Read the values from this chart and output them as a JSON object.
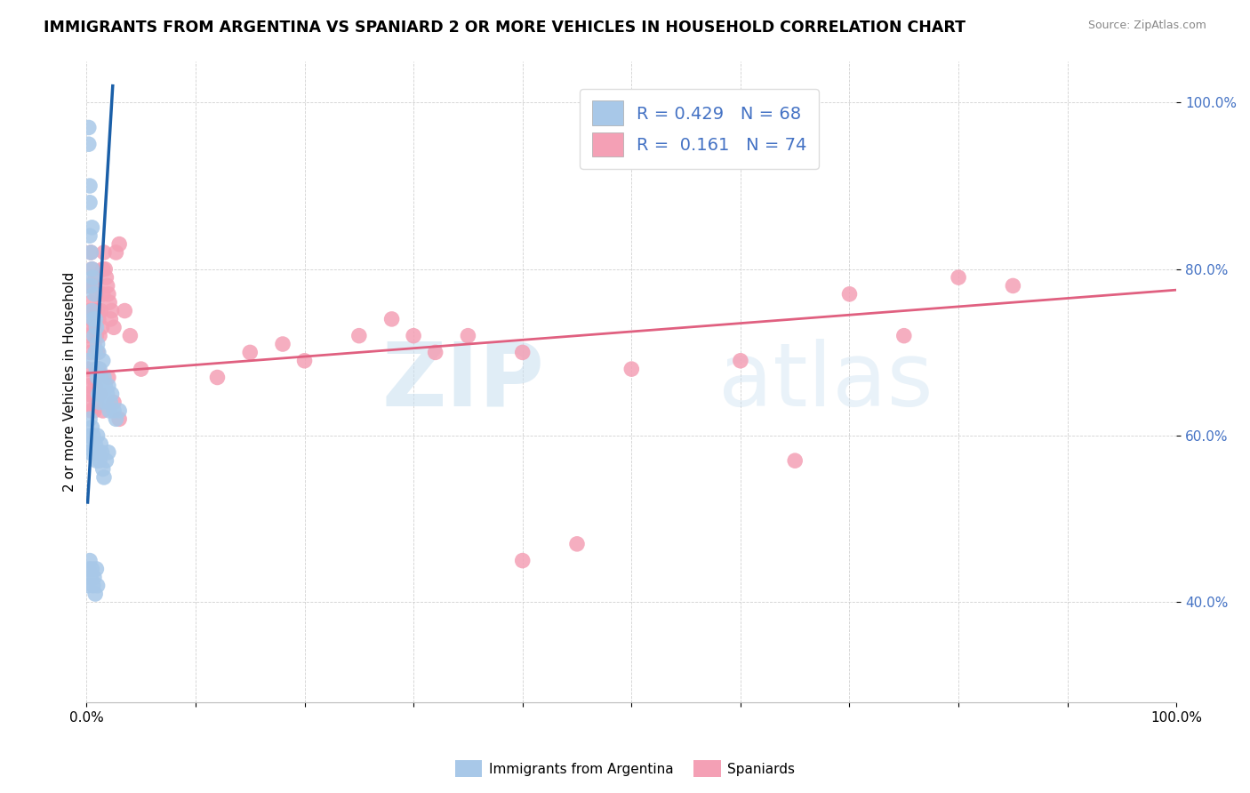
{
  "title": "IMMIGRANTS FROM ARGENTINA VS SPANIARD 2 OR MORE VEHICLES IN HOUSEHOLD CORRELATION CHART",
  "source": "Source: ZipAtlas.com",
  "ylabel": "2 or more Vehicles in Household",
  "legend_r1": "R = 0.429",
  "legend_n1": "N = 68",
  "legend_r2": "R =  0.161",
  "legend_n2": "N = 74",
  "blue_color": "#a8c8e8",
  "pink_color": "#f4a0b5",
  "blue_line_color": "#1a5fa8",
  "pink_line_color": "#e06080",
  "yticks_labels": [
    "40.0%",
    "60.0%",
    "80.0%",
    "100.0%"
  ],
  "ytick_vals": [
    0.4,
    0.6,
    0.8,
    1.0
  ],
  "watermark_zip": "ZIP",
  "watermark_atlas": "atlas",
  "xmin": 0.0,
  "xmax": 1.0,
  "ymin": 0.28,
  "ymax": 1.05,
  "arg_x": [
    0.001,
    0.002,
    0.002,
    0.003,
    0.003,
    0.003,
    0.004,
    0.004,
    0.005,
    0.005,
    0.005,
    0.006,
    0.006,
    0.007,
    0.007,
    0.008,
    0.008,
    0.009,
    0.009,
    0.01,
    0.01,
    0.011,
    0.011,
    0.012,
    0.012,
    0.013,
    0.014,
    0.015,
    0.015,
    0.016,
    0.017,
    0.018,
    0.019,
    0.02,
    0.021,
    0.022,
    0.023,
    0.025,
    0.027,
    0.03,
    0.001,
    0.002,
    0.003,
    0.004,
    0.005,
    0.006,
    0.007,
    0.008,
    0.009,
    0.01,
    0.011,
    0.012,
    0.013,
    0.014,
    0.015,
    0.016,
    0.018,
    0.02,
    0.001,
    0.002,
    0.003,
    0.004,
    0.005,
    0.006,
    0.007,
    0.008,
    0.009,
    0.01
  ],
  "arg_y": [
    0.69,
    0.95,
    0.97,
    0.9,
    0.88,
    0.84,
    0.82,
    0.78,
    0.85,
    0.8,
    0.75,
    0.79,
    0.74,
    0.77,
    0.72,
    0.74,
    0.7,
    0.73,
    0.68,
    0.71,
    0.67,
    0.7,
    0.65,
    0.68,
    0.64,
    0.67,
    0.66,
    0.69,
    0.65,
    0.67,
    0.66,
    0.64,
    0.65,
    0.66,
    0.63,
    0.64,
    0.65,
    0.63,
    0.62,
    0.63,
    0.58,
    0.6,
    0.62,
    0.59,
    0.61,
    0.6,
    0.58,
    0.59,
    0.57,
    0.6,
    0.58,
    0.57,
    0.59,
    0.58,
    0.56,
    0.55,
    0.57,
    0.58,
    0.42,
    0.44,
    0.45,
    0.43,
    0.44,
    0.42,
    0.43,
    0.41,
    0.44,
    0.42
  ],
  "spa_x": [
    0.001,
    0.002,
    0.002,
    0.003,
    0.003,
    0.004,
    0.004,
    0.005,
    0.005,
    0.006,
    0.006,
    0.007,
    0.007,
    0.008,
    0.008,
    0.009,
    0.009,
    0.01,
    0.01,
    0.011,
    0.011,
    0.012,
    0.013,
    0.014,
    0.015,
    0.015,
    0.016,
    0.017,
    0.018,
    0.019,
    0.02,
    0.021,
    0.022,
    0.023,
    0.025,
    0.027,
    0.03,
    0.035,
    0.04,
    0.05,
    0.001,
    0.002,
    0.003,
    0.004,
    0.005,
    0.006,
    0.007,
    0.008,
    0.009,
    0.01,
    0.012,
    0.015,
    0.02,
    0.025,
    0.03,
    0.3,
    0.4,
    0.5,
    0.6,
    0.65,
    0.7,
    0.75,
    0.8,
    0.85,
    0.12,
    0.15,
    0.18,
    0.2,
    0.25,
    0.28,
    0.32,
    0.35,
    0.4,
    0.45
  ],
  "spa_y": [
    0.68,
    0.72,
    0.78,
    0.75,
    0.7,
    0.82,
    0.76,
    0.74,
    0.8,
    0.73,
    0.78,
    0.75,
    0.71,
    0.79,
    0.73,
    0.77,
    0.72,
    0.75,
    0.7,
    0.74,
    0.68,
    0.72,
    0.75,
    0.73,
    0.8,
    0.77,
    0.82,
    0.8,
    0.79,
    0.78,
    0.77,
    0.76,
    0.74,
    0.75,
    0.73,
    0.82,
    0.83,
    0.75,
    0.72,
    0.68,
    0.64,
    0.65,
    0.66,
    0.63,
    0.67,
    0.65,
    0.63,
    0.66,
    0.64,
    0.68,
    0.65,
    0.63,
    0.67,
    0.64,
    0.62,
    0.72,
    0.7,
    0.68,
    0.69,
    0.57,
    0.77,
    0.72,
    0.79,
    0.78,
    0.67,
    0.7,
    0.71,
    0.69,
    0.72,
    0.74,
    0.7,
    0.72,
    0.45,
    0.47
  ],
  "arg_trend": [
    0.001,
    0.024
  ],
  "arg_trend_y": [
    0.52,
    1.02
  ],
  "spa_trend": [
    0.0,
    1.0
  ],
  "spa_trend_y": [
    0.675,
    0.775
  ]
}
